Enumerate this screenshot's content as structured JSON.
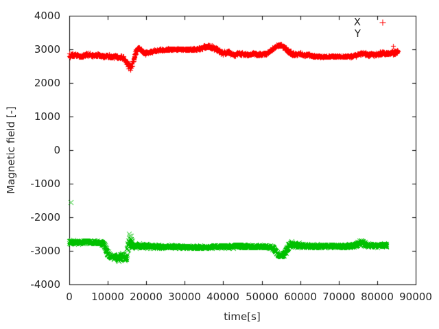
{
  "figure": {
    "background": "#ffffff",
    "frame_color": "#000000",
    "text_color": "#262626"
  },
  "chart_data": {
    "type": "scatter",
    "title": "",
    "xlabel": "time[s]",
    "ylabel": "Magnetic field [-]",
    "xlim": [
      0,
      90000
    ],
    "ylim": [
      -4000,
      4000
    ],
    "grid": false,
    "x_ticks": [
      0,
      10000,
      20000,
      30000,
      40000,
      50000,
      60000,
      70000,
      80000,
      90000
    ],
    "x_tick_labels": [
      "0",
      "10000",
      "20000",
      "30000",
      "40000",
      "50000",
      "60000",
      "70000",
      "80000",
      "90000"
    ],
    "y_ticks": [
      4000,
      3000,
      2000,
      1000,
      0,
      -1000,
      -2000,
      -3000,
      -4000
    ],
    "y_tick_labels": [
      "4000",
      "3000",
      "2000",
      "1000",
      "0",
      "-1000",
      "-2000",
      "-3000",
      "-4000"
    ],
    "legend": {
      "position": "top-right",
      "entries": [
        {
          "label": "X",
          "color": "#ff0000",
          "marker": "plus",
          "marker_visible": true
        },
        {
          "label": "Y",
          "color": "#00c000",
          "marker": "cross",
          "marker_visible": false
        }
      ]
    },
    "series": [
      {
        "name": "X",
        "color": "#ff0000",
        "marker": "plus",
        "keypoints": [
          [
            0,
            2810,
            70
          ],
          [
            1500,
            2835,
            65
          ],
          [
            3000,
            2790,
            60
          ],
          [
            4500,
            2850,
            65
          ],
          [
            6000,
            2820,
            60
          ],
          [
            7500,
            2840,
            60
          ],
          [
            9000,
            2790,
            60
          ],
          [
            10000,
            2820,
            60
          ],
          [
            11000,
            2770,
            60
          ],
          [
            12000,
            2800,
            60
          ],
          [
            13000,
            2780,
            60
          ],
          [
            14000,
            2755,
            70
          ],
          [
            14800,
            2640,
            90
          ],
          [
            15300,
            2500,
            110
          ],
          [
            15800,
            2470,
            100
          ],
          [
            16300,
            2560,
            90
          ],
          [
            16800,
            2730,
            80
          ],
          [
            17300,
            2950,
            70
          ],
          [
            17800,
            3040,
            60
          ],
          [
            18400,
            3000,
            60
          ],
          [
            19000,
            2920,
            60
          ],
          [
            19800,
            2880,
            60
          ],
          [
            20600,
            2905,
            55
          ],
          [
            21500,
            2940,
            50
          ],
          [
            22500,
            2970,
            45
          ],
          [
            24000,
            2990,
            40
          ],
          [
            26000,
            3000,
            35
          ],
          [
            30000,
            3000,
            35
          ],
          [
            32500,
            3005,
            35
          ],
          [
            34000,
            3025,
            50
          ],
          [
            35200,
            3065,
            70
          ],
          [
            36500,
            3085,
            75
          ],
          [
            37500,
            3050,
            75
          ],
          [
            38500,
            2990,
            70
          ],
          [
            39300,
            2930,
            70
          ],
          [
            40000,
            2890,
            70
          ],
          [
            41000,
            2920,
            65
          ],
          [
            42000,
            2870,
            60
          ],
          [
            43000,
            2840,
            60
          ],
          [
            44000,
            2890,
            60
          ],
          [
            45000,
            2860,
            60
          ],
          [
            46000,
            2835,
            60
          ],
          [
            47000,
            2860,
            55
          ],
          [
            48000,
            2875,
            50
          ],
          [
            49000,
            2850,
            50
          ],
          [
            50000,
            2860,
            50
          ],
          [
            51000,
            2880,
            50
          ],
          [
            52000,
            2940,
            50
          ],
          [
            53000,
            3030,
            50
          ],
          [
            54000,
            3110,
            50
          ],
          [
            54800,
            3130,
            55
          ],
          [
            55600,
            3080,
            60
          ],
          [
            56400,
            2990,
            70
          ],
          [
            57200,
            2910,
            70
          ],
          [
            58000,
            2870,
            70
          ],
          [
            59000,
            2850,
            70
          ],
          [
            60000,
            2885,
            65
          ],
          [
            61000,
            2830,
            60
          ],
          [
            62000,
            2850,
            55
          ],
          [
            63000,
            2810,
            50
          ],
          [
            64000,
            2790,
            40
          ],
          [
            66000,
            2788,
            35
          ],
          [
            70000,
            2790,
            35
          ],
          [
            72500,
            2792,
            35
          ],
          [
            73800,
            2805,
            45
          ],
          [
            74800,
            2845,
            60
          ],
          [
            75600,
            2895,
            60
          ],
          [
            76500,
            2870,
            60
          ],
          [
            77500,
            2840,
            60
          ],
          [
            78500,
            2860,
            60
          ],
          [
            79500,
            2850,
            60
          ],
          [
            80500,
            2880,
            65
          ],
          [
            81500,
            2900,
            70
          ],
          [
            82500,
            2870,
            70
          ],
          [
            83500,
            2890,
            75
          ],
          [
            84500,
            2915,
            80
          ],
          [
            85400,
            2940,
            70
          ]
        ],
        "outliers": [
          [
            84100,
            3100
          ]
        ]
      },
      {
        "name": "Y",
        "color": "#00c000",
        "marker": "cross",
        "keypoints": [
          [
            0,
            -2730,
            70
          ],
          [
            1500,
            -2740,
            60
          ],
          [
            3000,
            -2745,
            60
          ],
          [
            4500,
            -2730,
            60
          ],
          [
            6000,
            -2740,
            60
          ],
          [
            7500,
            -2735,
            60
          ],
          [
            8700,
            -2770,
            70
          ],
          [
            9300,
            -2900,
            90
          ],
          [
            9800,
            -3050,
            90
          ],
          [
            10300,
            -3140,
            80
          ],
          [
            10800,
            -3180,
            80
          ],
          [
            11300,
            -3160,
            90
          ],
          [
            11800,
            -3200,
            90
          ],
          [
            12300,
            -3180,
            90
          ],
          [
            12800,
            -3220,
            90
          ],
          [
            13200,
            -3160,
            90
          ],
          [
            13600,
            -3110,
            90
          ],
          [
            14000,
            -3160,
            90
          ],
          [
            14400,
            -3240,
            80
          ],
          [
            14800,
            -3210,
            130
          ],
          [
            15100,
            -2950,
            320
          ],
          [
            15500,
            -2720,
            300
          ],
          [
            15900,
            -2700,
            280
          ],
          [
            16300,
            -2790,
            210
          ],
          [
            16700,
            -2840,
            110
          ],
          [
            17500,
            -2830,
            70
          ],
          [
            18500,
            -2845,
            65
          ],
          [
            20000,
            -2855,
            60
          ],
          [
            22000,
            -2870,
            60
          ],
          [
            24000,
            -2880,
            55
          ],
          [
            26000,
            -2862,
            50
          ],
          [
            28000,
            -2870,
            50
          ],
          [
            30000,
            -2880,
            45
          ],
          [
            32000,
            -2882,
            45
          ],
          [
            34000,
            -2890,
            45
          ],
          [
            36000,
            -2880,
            45
          ],
          [
            38000,
            -2872,
            45
          ],
          [
            40000,
            -2860,
            55
          ],
          [
            41000,
            -2880,
            60
          ],
          [
            42000,
            -2870,
            55
          ],
          [
            43000,
            -2860,
            55
          ],
          [
            44000,
            -2850,
            55
          ],
          [
            45000,
            -2858,
            55
          ],
          [
            46000,
            -2862,
            55
          ],
          [
            47000,
            -2870,
            50
          ],
          [
            48000,
            -2868,
            50
          ],
          [
            49000,
            -2860,
            50
          ],
          [
            50000,
            -2862,
            50
          ],
          [
            51000,
            -2868,
            50
          ],
          [
            52000,
            -2872,
            55
          ],
          [
            53000,
            -2905,
            60
          ],
          [
            53700,
            -3030,
            70
          ],
          [
            54400,
            -3140,
            60
          ],
          [
            55100,
            -3165,
            60
          ],
          [
            55800,
            -3090,
            70
          ],
          [
            56500,
            -2950,
            80
          ],
          [
            57100,
            -2830,
            90
          ],
          [
            57700,
            -2780,
            90
          ],
          [
            58300,
            -2820,
            80
          ],
          [
            59000,
            -2840,
            70
          ],
          [
            60000,
            -2815,
            80
          ],
          [
            61000,
            -2850,
            70
          ],
          [
            62000,
            -2845,
            60
          ],
          [
            63500,
            -2850,
            55
          ],
          [
            65000,
            -2855,
            55
          ],
          [
            66500,
            -2858,
            55
          ],
          [
            68000,
            -2852,
            55
          ],
          [
            69500,
            -2858,
            50
          ],
          [
            71000,
            -2852,
            50
          ],
          [
            72500,
            -2848,
            55
          ],
          [
            74000,
            -2845,
            60
          ],
          [
            75000,
            -2790,
            80
          ],
          [
            75800,
            -2730,
            85
          ],
          [
            76600,
            -2790,
            70
          ],
          [
            77500,
            -2830,
            60
          ],
          [
            78500,
            -2840,
            60
          ],
          [
            79500,
            -2845,
            60
          ],
          [
            80500,
            -2840,
            60
          ],
          [
            81500,
            -2825,
            65
          ],
          [
            82400,
            -2815,
            65
          ]
        ],
        "outliers": [
          [
            300,
            -1560
          ]
        ]
      }
    ]
  }
}
